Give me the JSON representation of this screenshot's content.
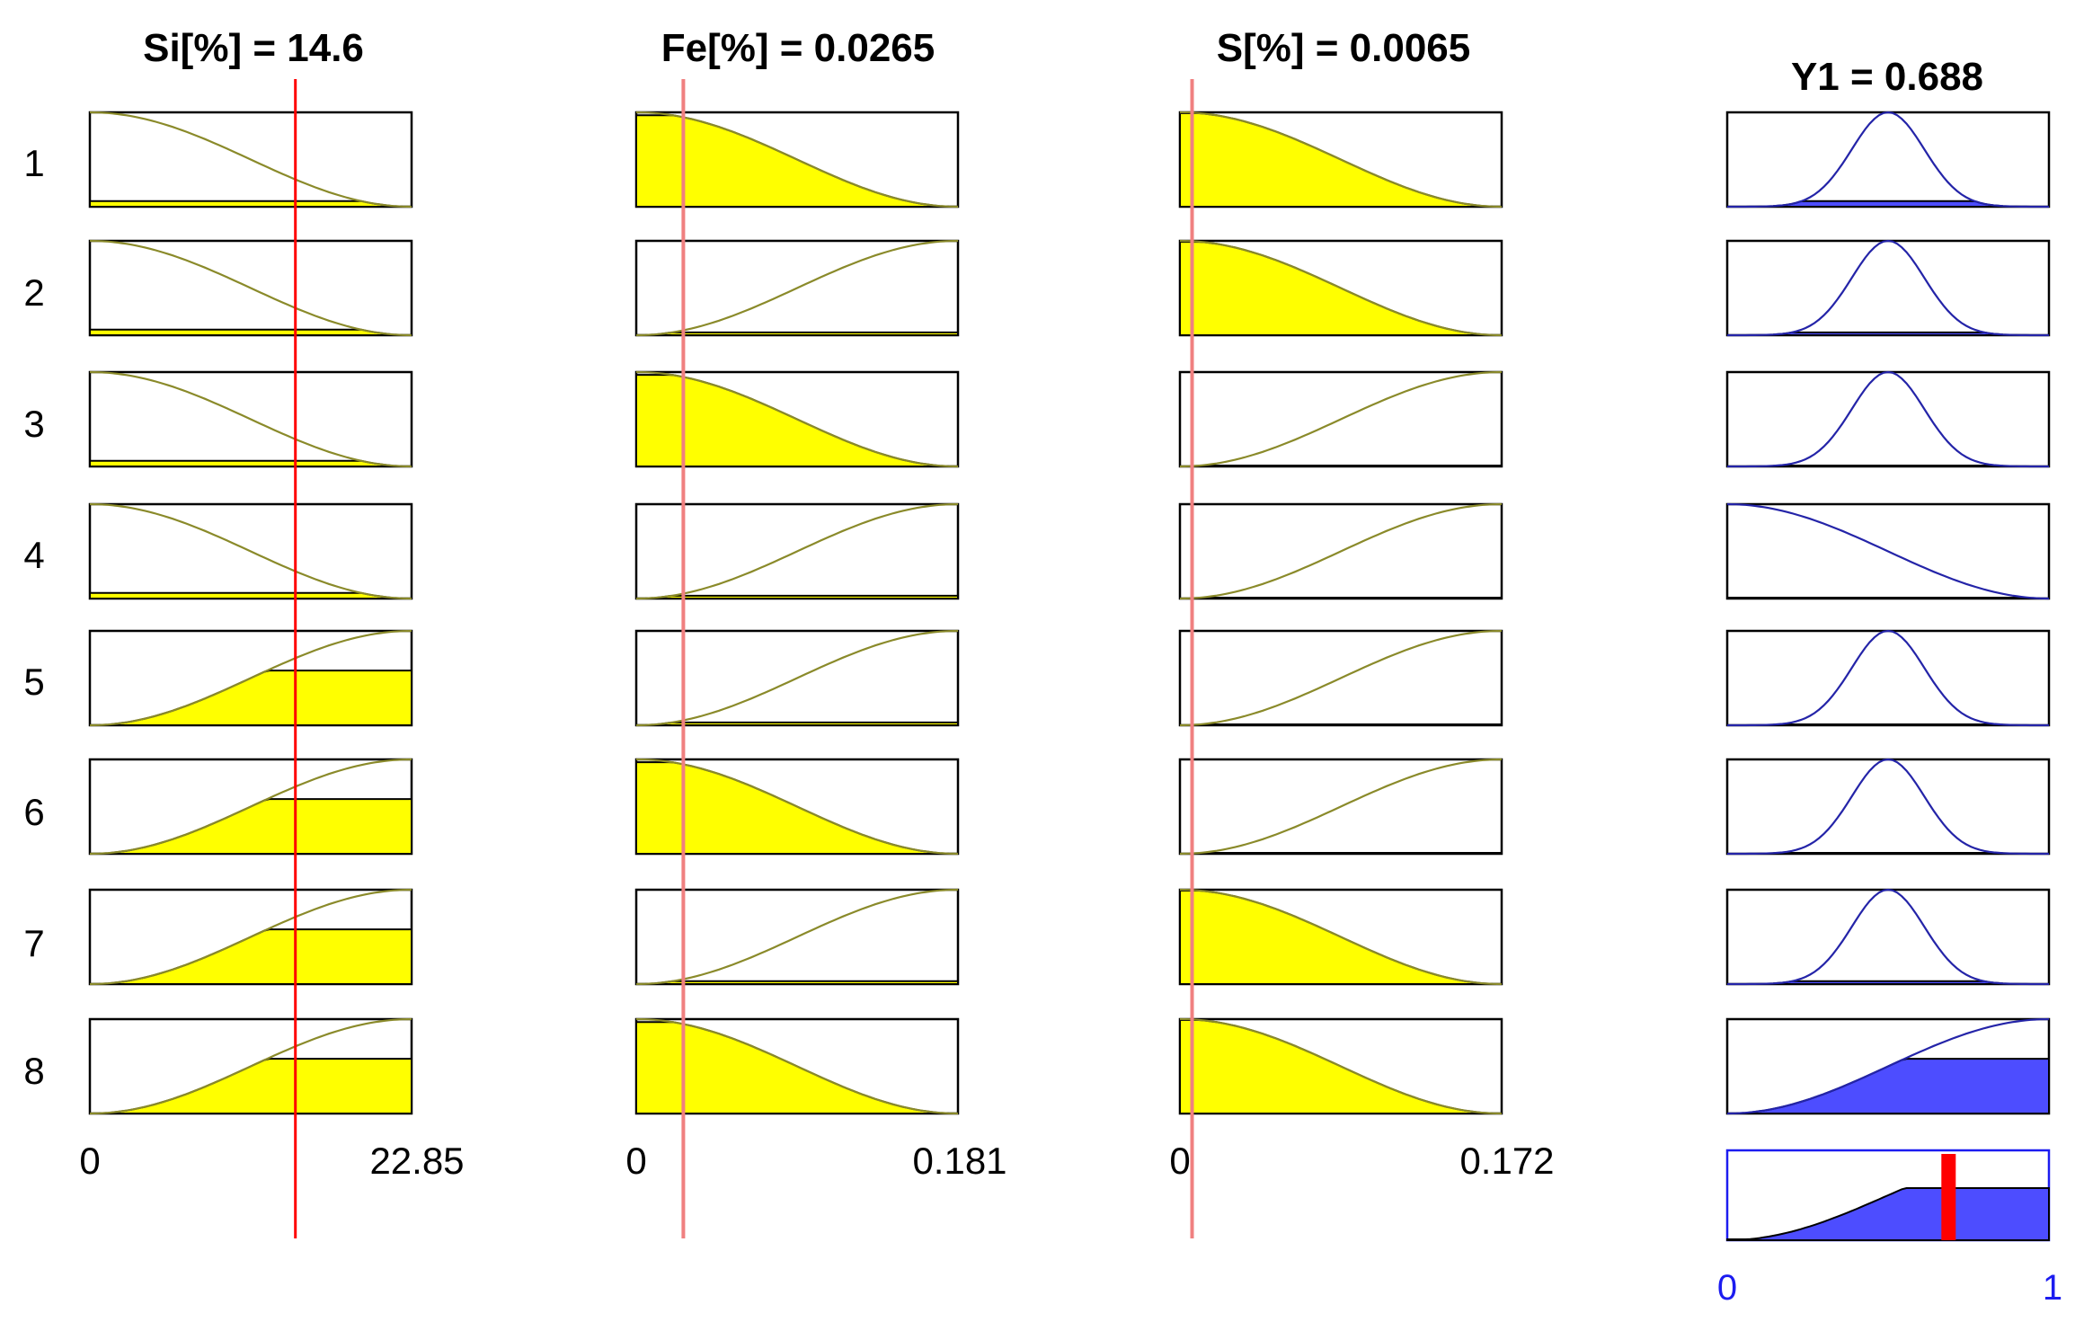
{
  "inputs": [
    {
      "title": "Si[%] = 14.6",
      "value": 14.6,
      "range": [
        0,
        22.85
      ],
      "range_labels": [
        "0",
        "22.85"
      ],
      "rule_mfs": [
        "decreasing",
        "decreasing",
        "decreasing",
        "decreasing",
        "increasing",
        "increasing",
        "increasing",
        "increasing"
      ],
      "rule_firing": [
        0.06,
        0.06,
        0.06,
        0.06,
        0.58,
        0.58,
        0.58,
        0.58
      ]
    },
    {
      "title": "Fe[%] = 0.0265",
      "value": 0.0265,
      "range": [
        0,
        0.181
      ],
      "range_labels": [
        "0",
        "0.181"
      ],
      "rule_mfs": [
        "decreasing",
        "increasing",
        "decreasing",
        "increasing",
        "increasing",
        "decreasing",
        "increasing",
        "decreasing"
      ],
      "rule_firing": [
        0.97,
        0.03,
        0.97,
        0.03,
        0.03,
        0.97,
        0.03,
        0.97
      ]
    },
    {
      "title": "S[%] = 0.0065",
      "value": 0.0065,
      "range": [
        0,
        0.172
      ],
      "range_labels": [
        "0",
        "0.172"
      ],
      "rule_mfs": [
        "decreasing",
        "decreasing",
        "increasing",
        "increasing",
        "increasing",
        "increasing",
        "decreasing",
        "decreasing"
      ],
      "rule_firing": [
        0.99,
        0.99,
        0.01,
        0.01,
        0.01,
        0.01,
        0.99,
        0.99
      ]
    }
  ],
  "output": {
    "title": "Y1 = 0.688",
    "value": 0.688,
    "range": [
      0,
      1
    ],
    "range_labels": [
      "0",
      "1"
    ],
    "rule_mfs": [
      "bell",
      "bell",
      "bell",
      "decreasing",
      "bell",
      "bell",
      "bell",
      "increasing"
    ],
    "rule_firing": [
      0.06,
      0.03,
      0.01,
      0.01,
      0.01,
      0.01,
      0.03,
      0.58
    ]
  },
  "rules": [
    "1",
    "2",
    "3",
    "4",
    "5",
    "6",
    "7",
    "8"
  ],
  "colors": {
    "input_fill": "#ffff00",
    "input_curve": "#8a8a2a",
    "output_fill": "#4d4dff",
    "output_curve": "#2424a8",
    "indicator": "#ff0000"
  }
}
